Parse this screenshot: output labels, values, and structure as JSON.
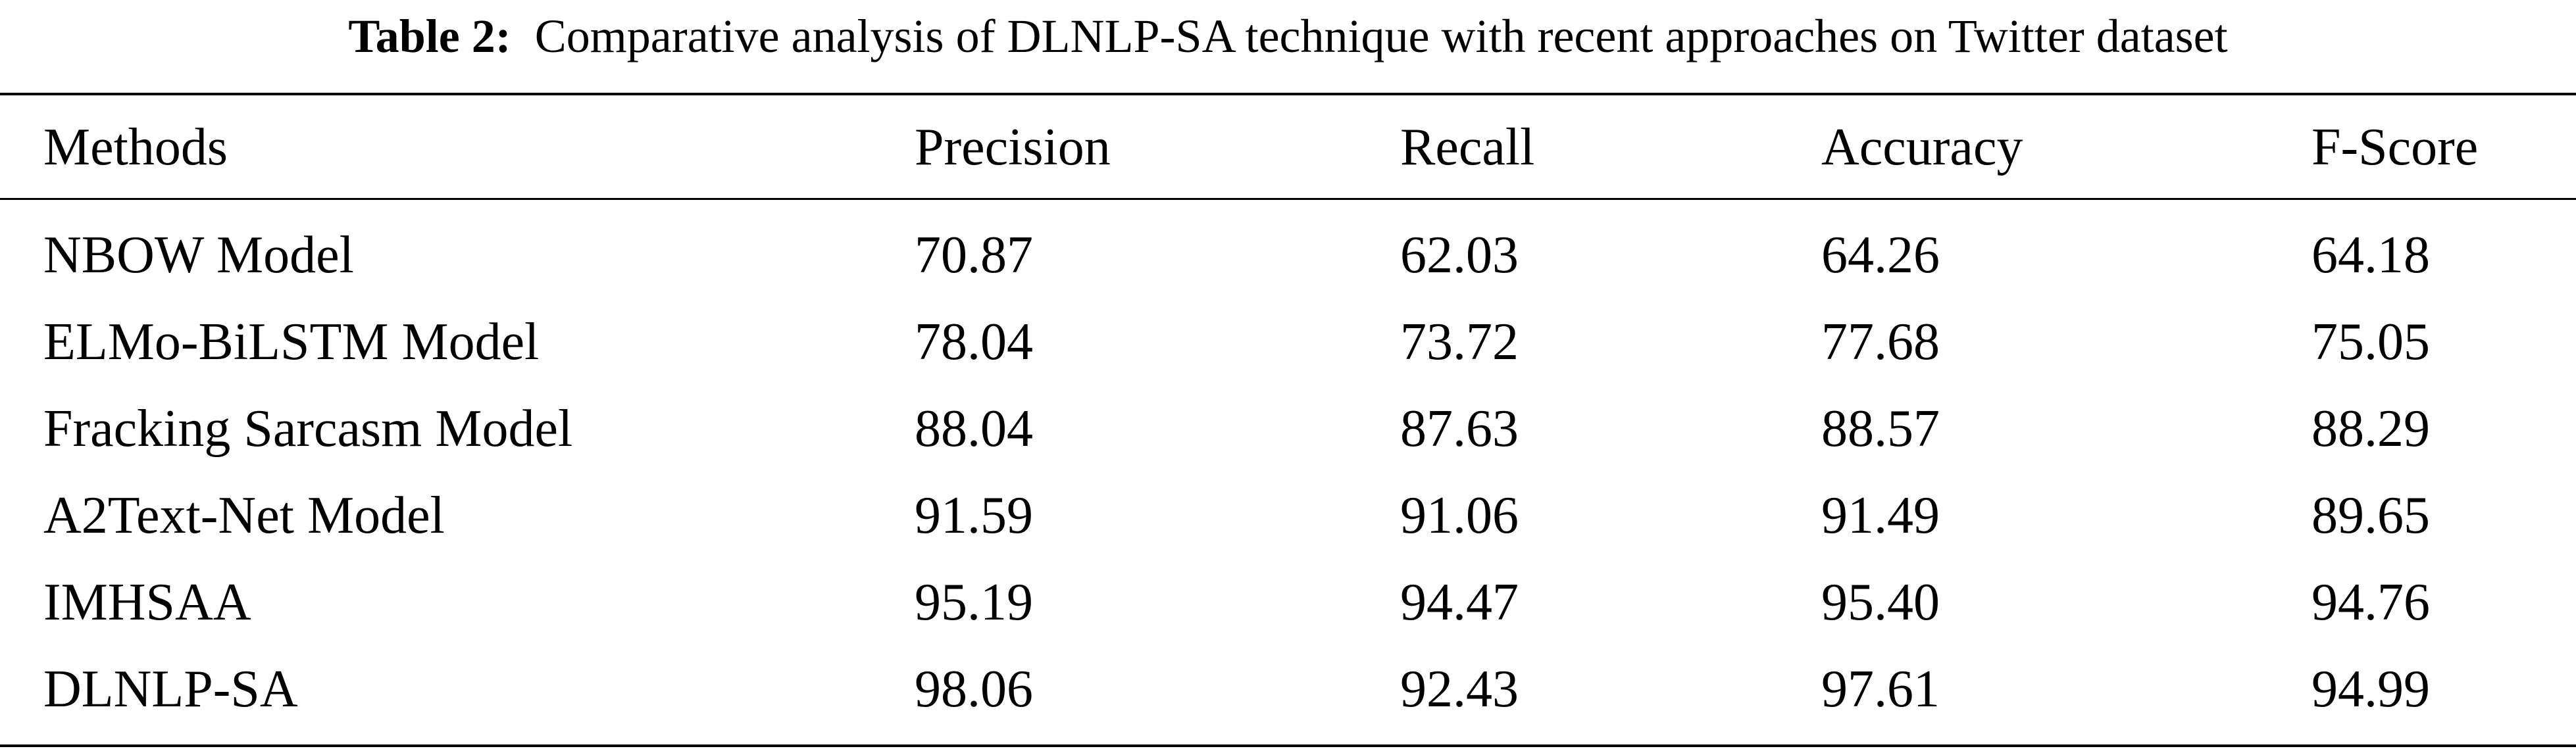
{
  "caption": {
    "label": "Table 2:",
    "text": "Comparative analysis of DLNLP-SA technique with recent approaches on Twitter dataset"
  },
  "table": {
    "headers": [
      "Methods",
      "Precision",
      "Recall",
      "Accuracy",
      "F-Score"
    ],
    "rows": [
      [
        "NBOW Model",
        "70.87",
        "62.03",
        "64.26",
        "64.18"
      ],
      [
        "ELMo-BiLSTM Model",
        "78.04",
        "73.72",
        "77.68",
        "75.05"
      ],
      [
        "Fracking Sarcasm Model",
        "88.04",
        "87.63",
        "88.57",
        "88.29"
      ],
      [
        "A2Text-Net Model",
        "91.59",
        "91.06",
        "91.49",
        "89.65"
      ],
      [
        "IMHSAA",
        "95.19",
        "94.47",
        "95.40",
        "94.76"
      ],
      [
        "DLNLP-SA",
        "98.06",
        "92.43",
        "97.61",
        "94.99"
      ]
    ]
  }
}
